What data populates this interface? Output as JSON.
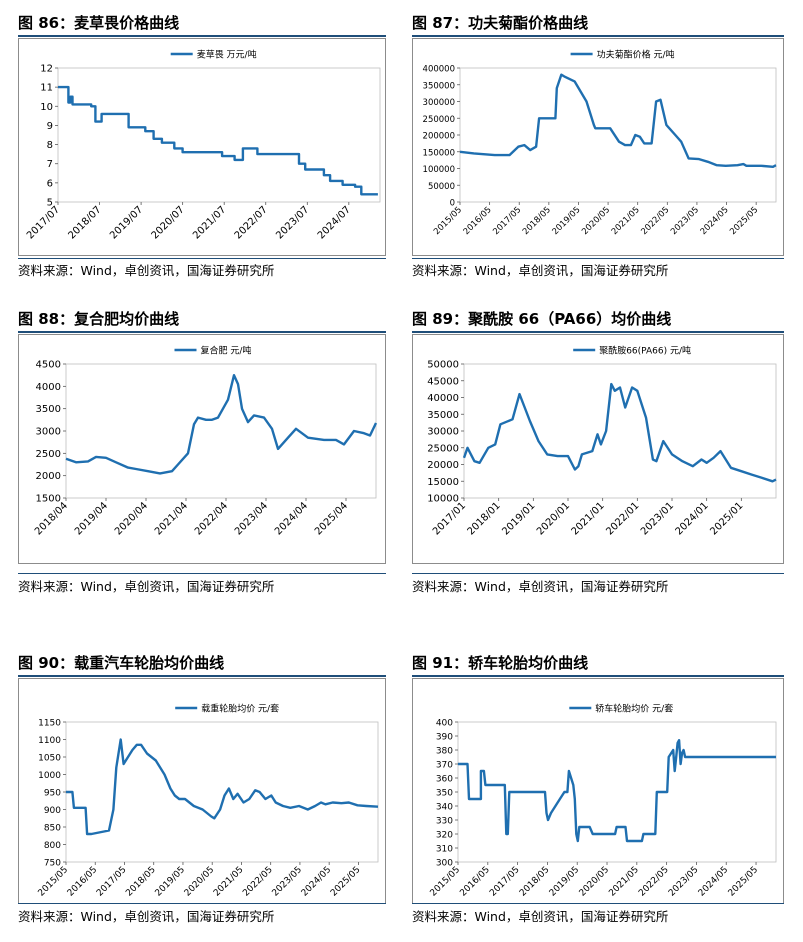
{
  "panels": [
    {
      "title": "图 86：麦草畏价格曲线",
      "source": "资料来源：Wind，卓创资讯，国海证券研究所",
      "chart_data": {
        "type": "line",
        "title": "",
        "legend": "麦草畏 万元/吨",
        "legend_position": "top",
        "ylim": [
          5,
          12
        ],
        "yticks": [
          5,
          6,
          7,
          8,
          9,
          10,
          11,
          12
        ],
        "xrange": [
          2017.5,
          2025.25
        ],
        "xtick_labels": [
          "2017/07",
          "2018/07",
          "2019/07",
          "2020/07",
          "2021/07",
          "2022/07",
          "2023/07",
          "2024/07"
        ],
        "xtick_values": [
          2017.5,
          2018.5,
          2019.5,
          2020.5,
          2021.5,
          2022.5,
          2023.5,
          2024.5
        ],
        "series": [
          {
            "name": "麦草畏 万元/吨",
            "x": [
              2017.5,
              2017.75,
              2017.75,
              2017.8,
              2017.8,
              2017.85,
              2017.85,
              2018.3,
              2018.3,
              2018.4,
              2018.4,
              2018.55,
              2018.55,
              2019.2,
              2019.2,
              2019.6,
              2019.6,
              2019.8,
              2019.8,
              2020.0,
              2020.0,
              2020.3,
              2020.3,
              2020.5,
              2020.5,
              2021.45,
              2021.45,
              2021.75,
              2021.75,
              2021.95,
              2021.95,
              2022.3,
              2022.3,
              2023.3,
              2023.3,
              2023.45,
              2023.45,
              2023.9,
              2023.9,
              2024.05,
              2024.05,
              2024.35,
              2024.35,
              2024.65,
              2024.65,
              2024.8,
              2024.8,
              2025.2
            ],
            "values": [
              11.0,
              11.0,
              10.2,
              10.2,
              10.5,
              10.5,
              10.1,
              10.1,
              10.0,
              10.0,
              9.2,
              9.2,
              9.6,
              9.6,
              8.9,
              8.9,
              8.7,
              8.7,
              8.3,
              8.3,
              8.1,
              8.1,
              7.8,
              7.8,
              7.6,
              7.6,
              7.4,
              7.4,
              7.2,
              7.2,
              7.8,
              7.8,
              7.5,
              7.5,
              7.0,
              7.0,
              6.7,
              6.7,
              6.4,
              6.4,
              6.1,
              6.1,
              5.9,
              5.9,
              5.8,
              5.8,
              5.4,
              5.4
            ]
          }
        ]
      }
    },
    {
      "title": "图 87：功夫菊酯价格曲线",
      "source": "资料来源：Wind，卓创资讯，国海证券研究所",
      "chart_data": {
        "type": "line",
        "title": "",
        "legend": "功夫菊酯价格 元/吨",
        "legend_position": "top",
        "ylim": [
          0,
          400000
        ],
        "yticks": [
          0,
          50000,
          100000,
          150000,
          200000,
          250000,
          300000,
          350000,
          400000
        ],
        "xrange": [
          2015.33,
          2026.0
        ],
        "xtick_labels": [
          "2015/05",
          "2016/05",
          "2017/05",
          "2018/05",
          "2019/05",
          "2020/05",
          "2021/05",
          "2022/05",
          "2023/05",
          "2024/05",
          "2025/05"
        ],
        "xtick_values": [
          2015.33,
          2016.33,
          2017.33,
          2018.33,
          2019.33,
          2020.33,
          2021.33,
          2022.33,
          2023.33,
          2024.33,
          2025.33
        ],
        "series": [
          {
            "name": "功夫菊酯价格 元/吨",
            "x": [
              2015.33,
              2015.8,
              2016.5,
              2017.0,
              2017.3,
              2017.5,
              2017.7,
              2017.9,
              2018.0,
              2018.05,
              2018.55,
              2018.6,
              2018.75,
              2018.85,
              2019.2,
              2019.6,
              2019.85,
              2019.9,
              2020.4,
              2020.7,
              2020.9,
              2021.1,
              2021.25,
              2021.4,
              2021.55,
              2021.8,
              2021.95,
              2022.1,
              2022.3,
              2022.6,
              2022.8,
              2023.05,
              2023.4,
              2023.7,
              2024.0,
              2024.3,
              2024.7,
              2024.9,
              2025.0,
              2025.5,
              2025.9,
              2026.0
            ],
            "values": [
              150000,
              145000,
              140000,
              140000,
              165000,
              170000,
              155000,
              165000,
              250000,
              250000,
              250000,
              340000,
              380000,
              375000,
              360000,
              300000,
              230000,
              220000,
              220000,
              180000,
              170000,
              170000,
              200000,
              195000,
              175000,
              175000,
              300000,
              305000,
              230000,
              200000,
              180000,
              130000,
              128000,
              120000,
              110000,
              108000,
              110000,
              113000,
              108000,
              108000,
              105000,
              110000
            ]
          }
        ]
      }
    },
    {
      "title": "图 88：复合肥均价曲线",
      "source": "资料来源：Wind，卓创资讯，国海证券研究所",
      "chart_data": {
        "type": "line",
        "title": "",
        "legend": "复合肥 元/吨",
        "legend_position": "top",
        "ylim": [
          1500,
          4500
        ],
        "yticks": [
          1500,
          2000,
          2500,
          3000,
          3500,
          4000,
          4500
        ],
        "xrange": [
          2018.25,
          2026.0
        ],
        "xtick_labels": [
          "2018/04",
          "2019/04",
          "2020/04",
          "2021/04",
          "2022/04",
          "2023/04",
          "2024/04",
          "2025/04"
        ],
        "xtick_values": [
          2018.25,
          2019.25,
          2020.25,
          2021.25,
          2022.25,
          2023.25,
          2024.25,
          2025.25
        ],
        "series": [
          {
            "name": "复合肥 元/吨",
            "x": [
              2018.25,
              2018.5,
              2018.8,
              2019.0,
              2019.25,
              2019.5,
              2019.8,
              2020.0,
              2020.3,
              2020.6,
              2020.9,
              2021.05,
              2021.3,
              2021.45,
              2021.55,
              2021.75,
              2021.9,
              2022.05,
              2022.3,
              2022.45,
              2022.55,
              2022.65,
              2022.8,
              2022.95,
              2023.2,
              2023.4,
              2023.55,
              2023.8,
              2024.0,
              2024.3,
              2024.7,
              2025.0,
              2025.2,
              2025.45,
              2025.7,
              2025.85,
              2026.0
            ],
            "values": [
              2380,
              2300,
              2320,
              2420,
              2400,
              2300,
              2180,
              2150,
              2100,
              2050,
              2100,
              2250,
              2500,
              3150,
              3300,
              3250,
              3250,
              3300,
              3700,
              4250,
              4050,
              3500,
              3200,
              3350,
              3300,
              3050,
              2600,
              2850,
              3050,
              2850,
              2800,
              2800,
              2700,
              3000,
              2950,
              2900,
              3180
            ]
          }
        ]
      }
    },
    {
      "title": "图 89：聚酰胺 66（PA66）均价曲线",
      "source": "资料来源：Wind，卓创资讯，国海证券研究所",
      "chart_data": {
        "type": "line",
        "title": "",
        "legend": "聚酰胺66(PA66) 元/吨",
        "legend_position": "top",
        "ylim": [
          10000,
          50000
        ],
        "yticks": [
          10000,
          15000,
          20000,
          25000,
          30000,
          35000,
          40000,
          45000,
          50000
        ],
        "xrange": [
          2017.0,
          2026.0
        ],
        "xtick_labels": [
          "2017/01",
          "2018/01",
          "2019/01",
          "2020/01",
          "2021/01",
          "2022/01",
          "2023/01",
          "2024/01",
          "2025/01"
        ],
        "xtick_values": [
          2017.0,
          2018.0,
          2019.0,
          2020.0,
          2021.0,
          2022.0,
          2023.0,
          2024.0,
          2025.0
        ],
        "series": [
          {
            "name": "聚酰胺66(PA66) 元/吨",
            "x": [
              2017.0,
              2017.1,
              2017.3,
              2017.45,
              2017.7,
              2017.9,
              2018.05,
              2018.4,
              2018.6,
              2018.75,
              2018.9,
              2019.15,
              2019.4,
              2019.7,
              2020.0,
              2020.2,
              2020.3,
              2020.4,
              2020.7,
              2020.85,
              2020.95,
              2021.1,
              2021.25,
              2021.35,
              2021.5,
              2021.65,
              2021.85,
              2022.0,
              2022.25,
              2022.45,
              2022.55,
              2022.75,
              2023.0,
              2023.3,
              2023.6,
              2023.85,
              2024.0,
              2024.2,
              2024.4,
              2024.7,
              2025.0,
              2025.3,
              2025.6,
              2025.9,
              2026.0
            ],
            "values": [
              22000,
              25000,
              21000,
              20500,
              25000,
              26000,
              32000,
              33500,
              41000,
              37000,
              33000,
              27000,
              23000,
              22500,
              22500,
              18500,
              19500,
              23000,
              24000,
              29000,
              26000,
              30000,
              44000,
              42000,
              43000,
              37000,
              43000,
              42000,
              34000,
              21500,
              21000,
              27000,
              23000,
              21000,
              19500,
              21500,
              20500,
              22000,
              24000,
              19000,
              18000,
              17000,
              16000,
              15000,
              15500
            ]
          }
        ]
      }
    },
    {
      "title": "图 90：载重汽车轮胎均价曲线",
      "source": "资料来源：Wind，卓创资讯，国海证券研究所",
      "chart_data": {
        "type": "line",
        "title": "",
        "legend": "载重轮胎均价 元/套",
        "legend_position": "top",
        "ylim": [
          750,
          1150
        ],
        "yticks": [
          750,
          800,
          850,
          900,
          950,
          1000,
          1050,
          1100,
          1150
        ],
        "xrange": [
          2015.33,
          2026.0
        ],
        "xtick_labels": [
          "2015/05",
          "2016/05",
          "2017/05",
          "2018/05",
          "2019/05",
          "2020/05",
          "2021/05",
          "2022/05",
          "2023/05",
          "2024/05",
          "2025/05"
        ],
        "xtick_values": [
          2015.33,
          2016.33,
          2017.33,
          2018.33,
          2019.33,
          2020.33,
          2021.33,
          2022.33,
          2023.33,
          2024.33,
          2025.33
        ],
        "series": [
          {
            "name": "载重轮胎均价 元/套",
            "x": [
              2015.33,
              2015.55,
              2015.6,
              2016.0,
              2016.05,
              2016.2,
              2016.8,
              2016.95,
              2017.05,
              2017.2,
              2017.3,
              2017.45,
              2017.6,
              2017.75,
              2017.9,
              2018.1,
              2018.4,
              2018.7,
              2018.9,
              2019.05,
              2019.2,
              2019.4,
              2019.7,
              2020.0,
              2020.3,
              2020.4,
              2020.6,
              2020.75,
              2020.9,
              2021.05,
              2021.2,
              2021.4,
              2021.6,
              2021.8,
              2021.95,
              2022.15,
              2022.35,
              2022.5,
              2022.75,
              2023.0,
              2023.3,
              2023.6,
              2023.85,
              2024.05,
              2024.2,
              2024.45,
              2024.75,
              2025.0,
              2025.3,
              2025.6,
              2026.0
            ],
            "values": [
              950,
              950,
              905,
              905,
              830,
              830,
              840,
              900,
              1020,
              1100,
              1030,
              1050,
              1070,
              1085,
              1085,
              1060,
              1040,
              1000,
              960,
              940,
              930,
              930,
              910,
              900,
              880,
              875,
              900,
              940,
              960,
              930,
              945,
              920,
              930,
              955,
              950,
              930,
              940,
              920,
              910,
              905,
              910,
              900,
              910,
              920,
              915,
              920,
              918,
              920,
              912,
              910,
              908
            ]
          }
        ]
      }
    },
    {
      "title": "图 91：轿车轮胎均价曲线",
      "source": "资料来源：Wind，卓创资讯，国海证券研究所",
      "chart_data": {
        "type": "line",
        "title": "",
        "legend": "轿车轮胎均价 元/套",
        "legend_position": "top",
        "ylim": [
          300,
          400
        ],
        "yticks": [
          300,
          310,
          320,
          330,
          340,
          350,
          360,
          370,
          380,
          390,
          400
        ],
        "xrange": [
          2015.33,
          2026.0
        ],
        "xtick_labels": [
          "2015/05",
          "2016/05",
          "2017/05",
          "2018/05",
          "2019/05",
          "2020/05",
          "2021/05",
          "2022/05",
          "2023/05",
          "2024/05",
          "2025/05"
        ],
        "xtick_values": [
          2015.33,
          2016.33,
          2017.33,
          2018.33,
          2019.33,
          2020.33,
          2021.33,
          2022.33,
          2023.33,
          2024.33,
          2025.33
        ],
        "series": [
          {
            "name": "轿车轮胎均价 元/套",
            "x": [
              2015.33,
              2015.65,
              2015.7,
              2016.1,
              2016.1,
              2016.2,
              2016.25,
              2016.9,
              2016.95,
              2017.0,
              2017.05,
              2018.25,
              2018.3,
              2018.35,
              2018.45,
              2018.75,
              2018.9,
              2019.0,
              2019.05,
              2019.2,
              2019.25,
              2019.3,
              2019.35,
              2019.4,
              2019.75,
              2019.85,
              2020.3,
              2020.6,
              2020.65,
              2020.95,
              2021.0,
              2021.5,
              2021.55,
              2021.95,
              2022.0,
              2022.35,
              2022.4,
              2022.55,
              2022.6,
              2022.65,
              2022.7,
              2022.75,
              2022.8,
              2022.85,
              2022.9,
              2022.95,
              2023.0,
              2026.0
            ],
            "values": [
              370,
              370,
              345,
              345,
              365,
              365,
              355,
              355,
              320,
              320,
              350,
              350,
              335,
              330,
              335,
              345,
              350,
              350,
              365,
              355,
              345,
              320,
              315,
              325,
              325,
              320,
              320,
              320,
              325,
              325,
              315,
              315,
              320,
              320,
              350,
              350,
              375,
              380,
              365,
              375,
              385,
              387,
              370,
              378,
              380,
              375,
              375,
              375
            ]
          }
        ]
      }
    }
  ]
}
